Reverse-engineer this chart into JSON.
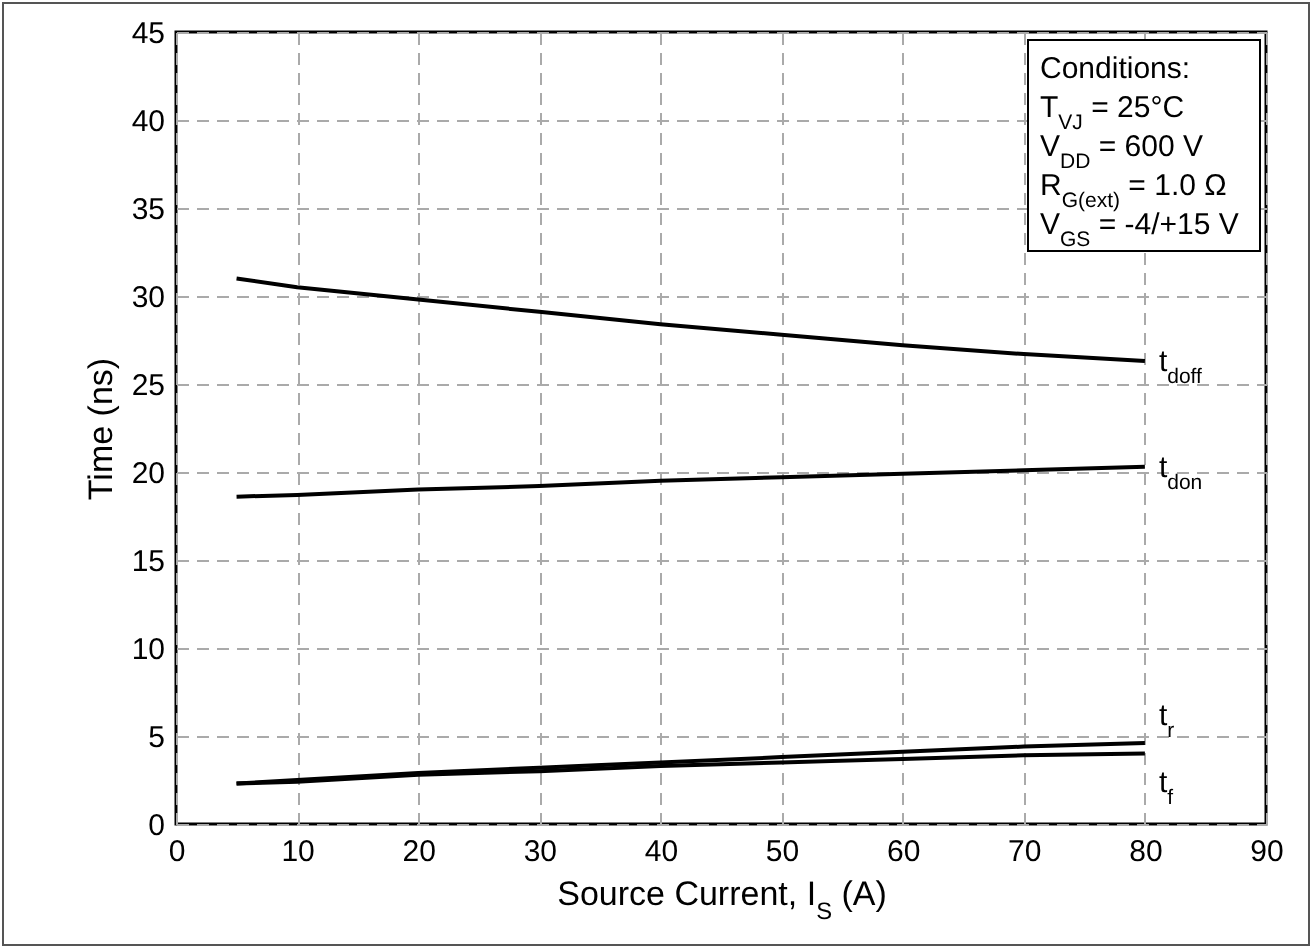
{
  "chart_data": {
    "type": "line",
    "xlabel": "Source Current, I$_{S}$ (A)",
    "ylabel": "Time (ns)",
    "x": [
      5,
      10,
      20,
      30,
      40,
      50,
      60,
      70,
      80
    ],
    "series": [
      {
        "name": "t$_{doff}$",
        "color": "#000000",
        "values": [
          31.0,
          30.5,
          29.8,
          29.1,
          28.4,
          27.8,
          27.2,
          26.7,
          26.3
        ]
      },
      {
        "name": "t$_{don}$",
        "color": "#000000",
        "values": [
          18.6,
          18.7,
          19.0,
          19.2,
          19.5,
          19.7,
          19.9,
          20.1,
          20.3
        ]
      },
      {
        "name": "t$_{r}$",
        "color": "#000000",
        "values": [
          2.3,
          2.5,
          2.9,
          3.2,
          3.5,
          3.8,
          4.1,
          4.4,
          4.6
        ]
      },
      {
        "name": "t$_{f}$",
        "color": "#000000",
        "values": [
          2.3,
          2.4,
          2.8,
          3.0,
          3.3,
          3.5,
          3.7,
          3.9,
          4.0
        ]
      }
    ],
    "annotations": [
      "Conditions:",
      "T$_{VJ}$ = 25°C",
      "V$_{DD}$ = 600 V",
      "R$_{G(ext)}$ = 1.0 Ω",
      "V$_{GS}$ = -4/+15 V"
    ],
    "xlim": [
      0,
      90
    ],
    "xticks": [
      0,
      10,
      20,
      30,
      40,
      50,
      60,
      70,
      80,
      90
    ],
    "ylim": [
      0,
      45
    ],
    "yticks": [
      0,
      5,
      10,
      15,
      20,
      25,
      30,
      35,
      40,
      45
    ],
    "grid": true,
    "legend": false,
    "marker": "none",
    "line_style": "solid"
  }
}
